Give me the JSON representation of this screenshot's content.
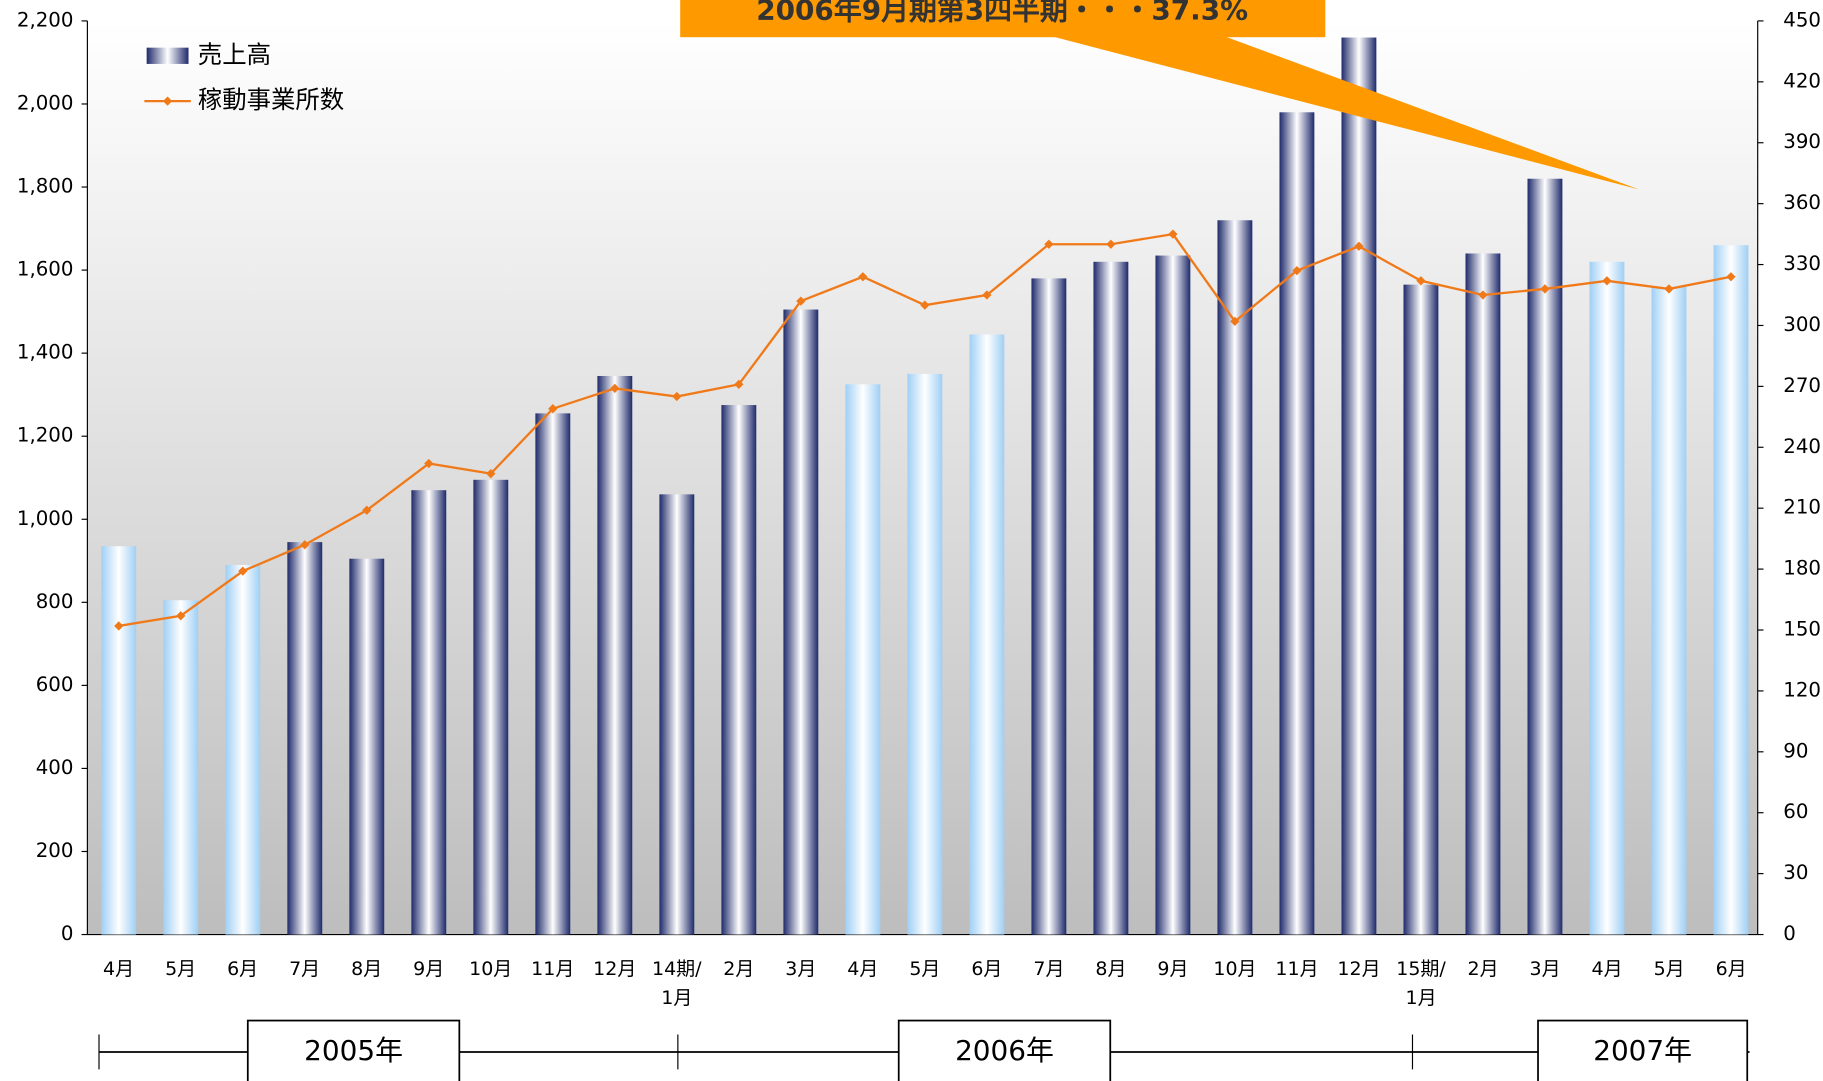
{
  "chart_data": {
    "type": "bar_line",
    "annotation": "2006年9月期第3四半期・・・37.3%",
    "categories": [
      "4月",
      "5月",
      "6月",
      "7月",
      "8月",
      "9月",
      "10月",
      "11月",
      "12月",
      "14期/\n1月",
      "2月",
      "3月",
      "4月",
      "5月",
      "6月",
      "7月",
      "8月",
      "9月",
      "10月",
      "11月",
      "12月",
      "15期/\n1月",
      "2月",
      "3月",
      "4月",
      "5月",
      "6月"
    ],
    "series": [
      {
        "name": "売上高",
        "type": "bar",
        "color": "#1f2a6b",
        "colors": [
          "#9fcff5",
          "#9fcff5",
          "#9fcff5",
          "#1f2a6b",
          "#1f2a6b",
          "#1f2a6b",
          "#1f2a6b",
          "#1f2a6b",
          "#1f2a6b",
          "#1f2a6b",
          "#1f2a6b",
          "#1f2a6b",
          "#9fcff5",
          "#9fcff5",
          "#9fcff5",
          "#1f2a6b",
          "#1f2a6b",
          "#1f2a6b",
          "#1f2a6b",
          "#1f2a6b",
          "#1f2a6b",
          "#1f2a6b",
          "#1f2a6b",
          "#1f2a6b",
          "#9fcff5",
          "#9fcff5",
          "#9fcff5"
        ],
        "values": [
          935,
          805,
          890,
          945,
          905,
          1070,
          1095,
          1255,
          1345,
          1060,
          1275,
          1505,
          1325,
          1350,
          1445,
          1580,
          1620,
          1635,
          1720,
          1980,
          2160,
          1565,
          1640,
          1820,
          1620,
          1560,
          1660
        ]
      },
      {
        "name": "稼動事業所数",
        "type": "line",
        "axis": "y2",
        "color": "#f07a1a",
        "values": [
          152,
          157,
          179,
          192,
          209,
          232,
          227,
          259,
          269,
          265,
          271,
          312,
          324,
          310,
          315,
          340,
          340,
          345,
          302,
          327,
          339,
          322,
          315,
          318,
          322,
          318,
          324
        ]
      }
    ],
    "ylim": [
      0,
      2200
    ],
    "yticks": [
      0,
      200,
      400,
      600,
      800,
      {
        "value": 1000,
        "label": "1,000"
      },
      {
        "value": 1200,
        "label": "1,200"
      },
      {
        "value": 1400,
        "label": "1,400"
      },
      {
        "value": 1600,
        "label": "1,600"
      },
      {
        "value": 1800,
        "label": "1,800"
      },
      {
        "value": 2000,
        "label": "2,000"
      },
      {
        "value": 2200,
        "label": "2,200"
      }
    ],
    "y2lim": [
      0,
      450
    ],
    "y2ticks": [
      0,
      30,
      60,
      90,
      120,
      150,
      180,
      210,
      240,
      270,
      300,
      330,
      360,
      390,
      420,
      450
    ],
    "periods": [
      "2005年",
      "2006年",
      "2007年"
    ]
  }
}
